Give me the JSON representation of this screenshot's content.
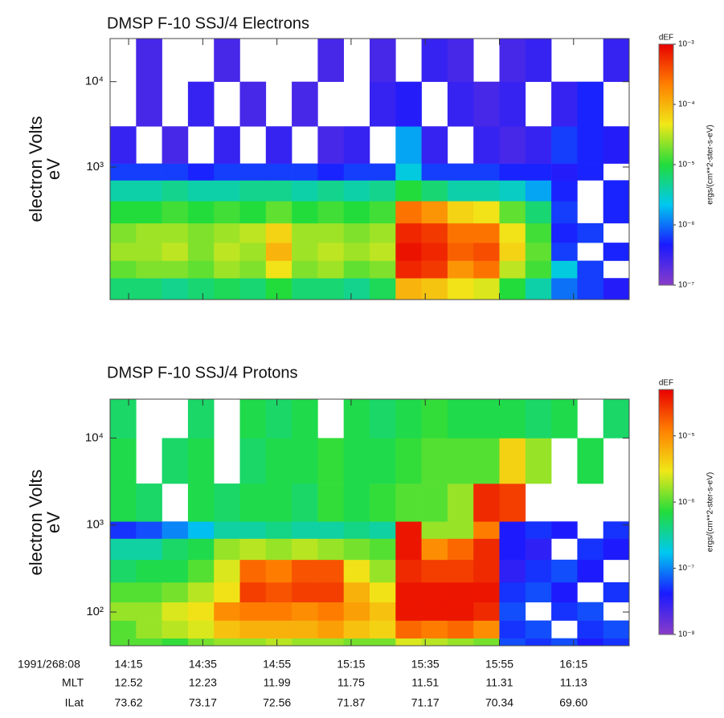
{
  "chart_data": [
    {
      "type": "heatmap",
      "title": "DMSP F-10 SSJ/4 Electrons",
      "ylabel": "electron Volts",
      "yunit": "eV",
      "log_y": true,
      "ylim": [
        28,
        32000
      ],
      "yticks": [
        {
          "value": 1000,
          "label": "10³"
        },
        {
          "value": 10000,
          "label": "10⁴"
        }
      ],
      "xlim": [
        850,
        990
      ],
      "xticks": [
        855,
        875,
        895,
        915,
        935,
        955,
        975
      ],
      "show_xtick_labels": false,
      "x_bins": [
        850,
        857,
        864,
        871,
        878,
        885,
        892,
        899,
        906,
        913,
        920,
        927,
        934,
        941,
        948,
        955,
        962,
        969,
        976,
        983,
        990
      ],
      "y_bins": [
        28,
        50,
        80,
        130,
        220,
        400,
        700,
        1100,
        3000,
        10000,
        32000
      ],
      "z": [
        [
          -5.2,
          -5.2,
          -5.3,
          -5.2,
          -5.1,
          -5.2,
          -5.0,
          -5.2,
          -5.2,
          -5.3,
          -5.1,
          -4.0,
          -4.1,
          -4.3,
          -4.4,
          -5.0,
          -5.4,
          -6.0,
          -6.2,
          -6.4
        ],
        [
          -4.8,
          -4.7,
          -4.7,
          -4.8,
          -4.6,
          -4.7,
          -4.3,
          -4.7,
          -4.6,
          -4.8,
          -4.7,
          -3.2,
          -3.3,
          -3.8,
          -3.6,
          -4.5,
          -4.9,
          -5.6,
          -6.2,
          null
        ],
        [
          -4.6,
          -4.6,
          -4.5,
          -4.7,
          -4.5,
          -4.6,
          -4.0,
          -4.6,
          -4.5,
          -4.6,
          -4.5,
          -3.1,
          -3.2,
          -3.5,
          -3.4,
          -4.2,
          -4.8,
          -6.2,
          null,
          -6.3
        ],
        [
          -4.7,
          -4.6,
          -4.6,
          -4.7,
          -4.6,
          -4.5,
          -4.2,
          -4.6,
          -4.6,
          -4.7,
          -4.6,
          -3.2,
          -3.3,
          -3.6,
          -3.6,
          -4.3,
          -4.9,
          -6.3,
          -6.2,
          null
        ],
        [
          -5.0,
          -5.0,
          -4.9,
          -5.0,
          -4.9,
          -5.0,
          -4.8,
          -5.0,
          -4.9,
          -5.0,
          -4.9,
          -3.6,
          -3.8,
          -4.2,
          -4.3,
          -4.8,
          -5.2,
          -6.2,
          null,
          -6.3
        ],
        [
          -5.4,
          -5.4,
          -5.3,
          -5.4,
          -5.4,
          -5.3,
          -5.3,
          -5.4,
          -5.3,
          -5.4,
          -5.3,
          -5.0,
          -5.2,
          -5.4,
          -5.4,
          -5.5,
          -5.8,
          -6.3,
          null,
          -6.3
        ],
        [
          -6.2,
          -6.2,
          -6.2,
          -6.3,
          -6.2,
          -6.2,
          -6.2,
          -6.2,
          -6.3,
          -6.2,
          -6.2,
          -5.6,
          -6.2,
          -6.2,
          -6.2,
          -6.3,
          -6.3,
          -6.4,
          -6.3,
          null
        ],
        [
          -6.5,
          null,
          -6.6,
          null,
          -6.5,
          null,
          -6.5,
          null,
          -6.6,
          -6.5,
          null,
          -5.8,
          -6.5,
          null,
          -6.5,
          -6.6,
          -6.5,
          -6.2,
          -6.3,
          -6.4
        ],
        [
          null,
          -6.6,
          null,
          -6.5,
          null,
          -6.6,
          null,
          -6.6,
          null,
          null,
          -6.5,
          -6.4,
          null,
          -6.5,
          -6.6,
          -6.5,
          null,
          -6.5,
          -6.3,
          null
        ],
        [
          null,
          -6.6,
          null,
          null,
          -6.6,
          null,
          null,
          null,
          -6.6,
          null,
          -6.6,
          null,
          -6.5,
          -6.6,
          null,
          -6.6,
          -6.5,
          null,
          null,
          -6.5
        ]
      ],
      "zlim": [
        -7,
        -3
      ],
      "colormap": [
        "#8a3cc8",
        "#1a1aff",
        "#00c8f0",
        "#22dc3c",
        "#f0e818",
        "#ff8000",
        "#e80000"
      ],
      "colorbar": {
        "title": "dEF",
        "label": "ergs/(cm**2-ster-s-eV)",
        "ticks": [
          {
            "value": -3,
            "label": "10⁻³"
          },
          {
            "value": -4,
            "label": "10⁻⁴"
          },
          {
            "value": -5,
            "label": "10⁻⁵"
          },
          {
            "value": -6,
            "label": "10⁻⁶"
          },
          {
            "value": -7,
            "label": "10⁻⁷"
          }
        ]
      }
    },
    {
      "type": "heatmap",
      "title": "DMSP F-10 SSJ/4 Protons",
      "ylabel": "electron Volts",
      "yunit": "eV",
      "log_y": true,
      "ylim": [
        41,
        28000
      ],
      "yticks": [
        {
          "value": 100,
          "label": "10²"
        },
        {
          "value": 1000,
          "label": "10³"
        },
        {
          "value": 10000,
          "label": "10⁴"
        }
      ],
      "xlim": [
        850,
        990
      ],
      "xticks": [
        {
          "value": 855,
          "label": "14:15"
        },
        {
          "value": 875,
          "label": "14:35"
        },
        {
          "value": 895,
          "label": "14:55"
        },
        {
          "value": 915,
          "label": "15:15"
        },
        {
          "value": 935,
          "label": "15:35"
        },
        {
          "value": 955,
          "label": "15:55"
        },
        {
          "value": 975,
          "label": "16:15"
        }
      ],
      "show_xtick_labels": true,
      "xlabel": "1991/268:08",
      "x_rows": [
        {
          "label": "MLT",
          "values": [
            "12.52",
            "12.23",
            "11.99",
            "11.75",
            "11.51",
            "11.31",
            "11.13"
          ]
        },
        {
          "label": "ILat",
          "values": [
            "73.62",
            "73.17",
            "72.56",
            "71.87",
            "71.17",
            "70.34",
            "69.60"
          ]
        }
      ],
      "x_bins": [
        850,
        857,
        864,
        871,
        878,
        885,
        892,
        899,
        906,
        913,
        920,
        927,
        934,
        941,
        948,
        955,
        962,
        969,
        976,
        983,
        990
      ],
      "y_bins": [
        41,
        50,
        80,
        130,
        220,
        400,
        700,
        1100,
        3000,
        10000,
        28000
      ],
      "z": [
        [
          -6.0,
          -6.0,
          -6.1,
          -5.9,
          -5.8,
          -5.8,
          -5.7,
          -5.8,
          -5.8,
          -5.9,
          -5.9,
          -5.6,
          -5.7,
          -5.8,
          -5.9,
          -7.2,
          -7.3,
          -7.2,
          -7.4,
          -7.3
        ],
        [
          -6.0,
          -5.8,
          -5.7,
          -5.6,
          -5.3,
          -5.2,
          -5.2,
          -5.2,
          -5.1,
          -5.3,
          -5.4,
          -4.8,
          -4.9,
          -4.8,
          -5.0,
          -7.3,
          -7.2,
          null,
          -7.3,
          -7.2
        ],
        [
          -5.8,
          -5.8,
          -5.6,
          -5.5,
          -5.0,
          -4.9,
          -4.9,
          -5.0,
          -4.9,
          -5.1,
          -5.3,
          -4.4,
          -4.4,
          -4.4,
          -4.5,
          -7.2,
          null,
          -7.3,
          -7.2,
          null
        ],
        [
          -6.0,
          -6.0,
          -5.9,
          -5.7,
          -5.5,
          -4.6,
          -4.7,
          -4.6,
          -4.6,
          -5.2,
          -5.5,
          -4.4,
          -4.4,
          -4.4,
          -4.4,
          -7.3,
          -7.2,
          -7.4,
          null,
          -7.3
        ],
        [
          -6.3,
          -6.2,
          -6.2,
          -6.0,
          -5.6,
          -4.8,
          -4.9,
          -4.7,
          -4.7,
          -5.5,
          -5.8,
          -4.5,
          -4.6,
          -4.6,
          -4.5,
          -7.5,
          -7.3,
          -7.2,
          -7.4,
          null
        ],
        [
          -6.5,
          -6.5,
          -6.3,
          -6.2,
          -5.8,
          -5.7,
          -5.8,
          -5.7,
          -5.8,
          -5.9,
          -6.0,
          -4.4,
          -5.0,
          -4.8,
          -4.5,
          -7.4,
          -7.5,
          null,
          -7.3,
          -7.4
        ],
        [
          -7.3,
          -7.2,
          -7.0,
          -6.8,
          -6.5,
          -6.5,
          -6.4,
          -6.5,
          -6.5,
          -6.4,
          -6.5,
          -4.4,
          -5.8,
          -5.8,
          -4.9,
          -7.4,
          -7.3,
          -7.4,
          null,
          -7.3
        ],
        [
          -6.2,
          -6.3,
          null,
          -6.2,
          -6.3,
          -6.2,
          -6.2,
          -6.3,
          -6.1,
          -6.2,
          -6.1,
          -6.0,
          -6.0,
          -5.8,
          -4.5,
          -4.6,
          null,
          null,
          null,
          null
        ],
        [
          -6.2,
          null,
          -6.3,
          -6.2,
          null,
          -6.3,
          -6.2,
          -6.2,
          -6.1,
          -6.2,
          -6.2,
          -6.1,
          -6.0,
          -6.0,
          -6.0,
          -5.4,
          -5.8,
          null,
          -6.2,
          null
        ],
        [
          -6.3,
          null,
          null,
          -6.3,
          null,
          -6.2,
          -6.3,
          -6.2,
          null,
          -6.2,
          -6.3,
          -6.2,
          -6.1,
          -6.2,
          -6.2,
          -6.2,
          -6.3,
          -6.2,
          null,
          -6.3
        ]
      ],
      "zlim": [
        -8,
        -4.3
      ],
      "colormap": [
        "#8a3cc8",
        "#1a1aff",
        "#00c8f0",
        "#22dc3c",
        "#f0e818",
        "#ff8000",
        "#e80000"
      ],
      "colorbar": {
        "title": "dEF",
        "label": "ergs/(cm**2-ster-s-eV)",
        "ticks": [
          {
            "value": -5,
            "label": "10⁻⁵"
          },
          {
            "value": -6,
            "label": "10⁻⁶"
          },
          {
            "value": -7,
            "label": "10⁻⁷"
          },
          {
            "value": -8,
            "label": "10⁻⁸"
          }
        ]
      }
    }
  ]
}
